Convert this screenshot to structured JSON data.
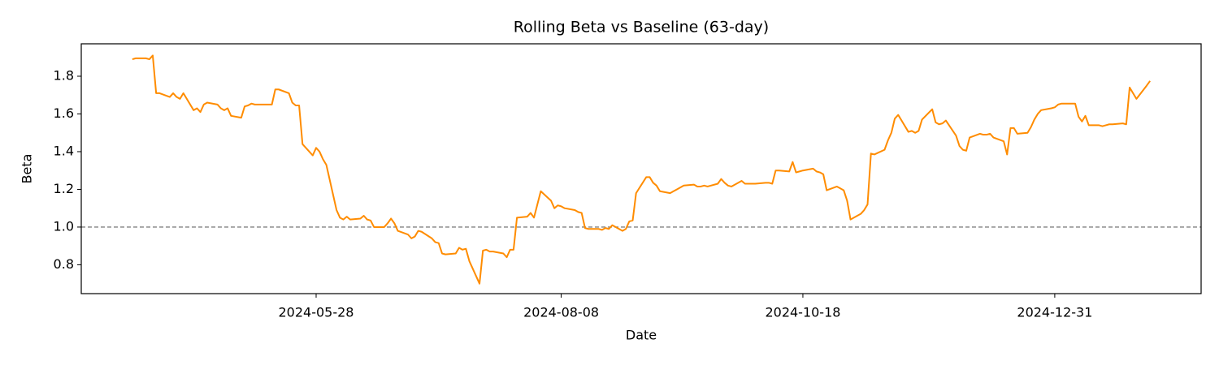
{
  "chart_data": {
    "type": "line",
    "title": "Rolling Beta vs Baseline (63-day)",
    "xlabel": "Date",
    "ylabel": "Beta",
    "color": "#ff8c00",
    "x": [
      "2024-04-04",
      "2024-04-05",
      "2024-04-08",
      "2024-04-09",
      "2024-04-10",
      "2024-04-11",
      "2024-04-12",
      "2024-04-15",
      "2024-04-16",
      "2024-04-17",
      "2024-04-18",
      "2024-04-19",
      "2024-04-22",
      "2024-04-23",
      "2024-04-24",
      "2024-04-25",
      "2024-04-26",
      "2024-04-29",
      "2024-04-30",
      "2024-05-01",
      "2024-05-02",
      "2024-05-03",
      "2024-05-06",
      "2024-05-07",
      "2024-05-08",
      "2024-05-09",
      "2024-05-10",
      "2024-05-13",
      "2024-05-14",
      "2024-05-15",
      "2024-05-16",
      "2024-05-17",
      "2024-05-20",
      "2024-05-21",
      "2024-05-22",
      "2024-05-23",
      "2024-05-24",
      "2024-05-27",
      "2024-05-28",
      "2024-05-29",
      "2024-05-30",
      "2024-05-31",
      "2024-06-03",
      "2024-06-04",
      "2024-06-05",
      "2024-06-06",
      "2024-06-07",
      "2024-06-10",
      "2024-06-11",
      "2024-06-12",
      "2024-06-13",
      "2024-06-14",
      "2024-06-17",
      "2024-06-18",
      "2024-06-19",
      "2024-06-20",
      "2024-06-21",
      "2024-06-24",
      "2024-06-25",
      "2024-06-26",
      "2024-06-27",
      "2024-06-28",
      "2024-07-01",
      "2024-07-02",
      "2024-07-03",
      "2024-07-04",
      "2024-07-05",
      "2024-07-08",
      "2024-07-09",
      "2024-07-10",
      "2024-07-11",
      "2024-07-12",
      "2024-07-15",
      "2024-07-16",
      "2024-07-17",
      "2024-07-18",
      "2024-07-19",
      "2024-07-22",
      "2024-07-23",
      "2024-07-24",
      "2024-07-25",
      "2024-07-26",
      "2024-07-29",
      "2024-07-30",
      "2024-07-31",
      "2024-08-01",
      "2024-08-02",
      "2024-08-05",
      "2024-08-06",
      "2024-08-07",
      "2024-08-08",
      "2024-08-09",
      "2024-08-12",
      "2024-08-13",
      "2024-08-14",
      "2024-08-15",
      "2024-08-16",
      "2024-08-19",
      "2024-08-20",
      "2024-08-21",
      "2024-08-22",
      "2024-08-23",
      "2024-08-26",
      "2024-08-27",
      "2024-08-28",
      "2024-08-29",
      "2024-08-30",
      "2024-09-02",
      "2024-09-03",
      "2024-09-04",
      "2024-09-05",
      "2024-09-06",
      "2024-09-09",
      "2024-09-10",
      "2024-09-11",
      "2024-09-12",
      "2024-09-13",
      "2024-09-16",
      "2024-09-17",
      "2024-09-18",
      "2024-09-19",
      "2024-09-20",
      "2024-09-23",
      "2024-09-24",
      "2024-09-25",
      "2024-09-26",
      "2024-09-27",
      "2024-09-30",
      "2024-10-01",
      "2024-10-02",
      "2024-10-03",
      "2024-10-04",
      "2024-10-07",
      "2024-10-08",
      "2024-10-09",
      "2024-10-10",
      "2024-10-11",
      "2024-10-14",
      "2024-10-15",
      "2024-10-16",
      "2024-10-17",
      "2024-10-18",
      "2024-10-21",
      "2024-10-22",
      "2024-10-23",
      "2024-10-24",
      "2024-10-25",
      "2024-10-28",
      "2024-10-29",
      "2024-10-30",
      "2024-10-31",
      "2024-11-01",
      "2024-11-04",
      "2024-11-05",
      "2024-11-06",
      "2024-11-07",
      "2024-11-08",
      "2024-11-11",
      "2024-11-12",
      "2024-11-13",
      "2024-11-14",
      "2024-11-15",
      "2024-11-18",
      "2024-11-19",
      "2024-11-20",
      "2024-11-21",
      "2024-11-22",
      "2024-11-25",
      "2024-11-26",
      "2024-11-27",
      "2024-11-28",
      "2024-11-29",
      "2024-12-02",
      "2024-12-03",
      "2024-12-04",
      "2024-12-05",
      "2024-12-06",
      "2024-12-09",
      "2024-12-10",
      "2024-12-11",
      "2024-12-12",
      "2024-12-13",
      "2024-12-16",
      "2024-12-17",
      "2024-12-18",
      "2024-12-19",
      "2024-12-20",
      "2024-12-23",
      "2024-12-24",
      "2024-12-25",
      "2024-12-26",
      "2024-12-27",
      "2024-12-30",
      "2024-12-31",
      "2025-01-01",
      "2025-01-02",
      "2025-01-03",
      "2025-01-06",
      "2025-01-07",
      "2025-01-08",
      "2025-01-09",
      "2025-01-10",
      "2025-01-13",
      "2025-01-14",
      "2025-01-15",
      "2025-01-16",
      "2025-01-17",
      "2025-01-20",
      "2025-01-21",
      "2025-01-22",
      "2025-01-23",
      "2025-01-24",
      "2025-01-27",
      "2025-01-28"
    ],
    "values": [
      1.89,
      1.895,
      1.895,
      1.89,
      1.91,
      1.71,
      1.71,
      1.69,
      1.71,
      1.69,
      1.68,
      1.71,
      1.62,
      1.63,
      1.61,
      1.65,
      1.66,
      1.65,
      1.63,
      1.62,
      1.63,
      1.59,
      1.58,
      1.64,
      1.645,
      1.655,
      1.65,
      1.65,
      1.65,
      1.65,
      1.73,
      1.73,
      1.71,
      1.66,
      1.645,
      1.645,
      1.44,
      1.38,
      1.42,
      1.4,
      1.36,
      1.33,
      1.09,
      1.05,
      1.04,
      1.055,
      1.04,
      1.045,
      1.06,
      1.04,
      1.035,
      1.0,
      1.0,
      1.02,
      1.045,
      1.02,
      0.98,
      0.96,
      0.94,
      0.95,
      0.98,
      0.975,
      0.94,
      0.92,
      0.915,
      0.86,
      0.855,
      0.86,
      0.89,
      0.88,
      0.885,
      0.82,
      0.7,
      0.875,
      0.88,
      0.87,
      0.87,
      0.86,
      0.84,
      0.88,
      0.88,
      1.05,
      1.055,
      1.075,
      1.05,
      1.12,
      1.19,
      1.14,
      1.1,
      1.115,
      1.11,
      1.1,
      1.09,
      1.08,
      1.075,
      0.995,
      0.99,
      0.99,
      0.985,
      0.995,
      0.99,
      1.01,
      0.98,
      0.99,
      1.03,
      1.035,
      1.18,
      1.265,
      1.265,
      1.235,
      1.22,
      1.19,
      1.18,
      1.19,
      1.2,
      1.21,
      1.22,
      1.225,
      1.215,
      1.215,
      1.22,
      1.215,
      1.23,
      1.255,
      1.235,
      1.22,
      1.215,
      1.245,
      1.23,
      1.23,
      1.23,
      1.23,
      1.235,
      1.235,
      1.23,
      1.3,
      1.3,
      1.295,
      1.345,
      1.29,
      1.295,
      1.3,
      1.31,
      1.295,
      1.29,
      1.28,
      1.195,
      1.215,
      1.205,
      1.195,
      1.14,
      1.04,
      1.07,
      1.09,
      1.12,
      1.39,
      1.385,
      1.41,
      1.46,
      1.5,
      1.575,
      1.595,
      1.505,
      1.51,
      1.5,
      1.51,
      1.57,
      1.625,
      1.555,
      1.545,
      1.55,
      1.565,
      1.485,
      1.43,
      1.41,
      1.405,
      1.475,
      1.495,
      1.49,
      1.49,
      1.495,
      1.475,
      1.455,
      1.385,
      1.525,
      1.525,
      1.495,
      1.5,
      1.53,
      1.57,
      1.6,
      1.62,
      1.63,
      1.635,
      1.65,
      1.655,
      1.655,
      1.655,
      1.585,
      1.56,
      1.59,
      1.54,
      1.54,
      1.535,
      1.54,
      1.545,
      1.545,
      1.55,
      1.545,
      1.74,
      1.71,
      1.68,
      1.75,
      1.775
    ],
    "baseline": 1,
    "baseline_color": "#808080",
    "xlim": [
      "2024-03-20",
      "2025-02-12"
    ],
    "xticks": [
      "2024-05-28",
      "2024-08-08",
      "2024-10-18",
      "2024-12-31"
    ],
    "ylim": [
      0.647,
      1.972
    ],
    "yticks": [
      0.8,
      {
        "value": 1,
        "label": "1.0"
      },
      1.2,
      1.4,
      1.6,
      1.8
    ]
  }
}
